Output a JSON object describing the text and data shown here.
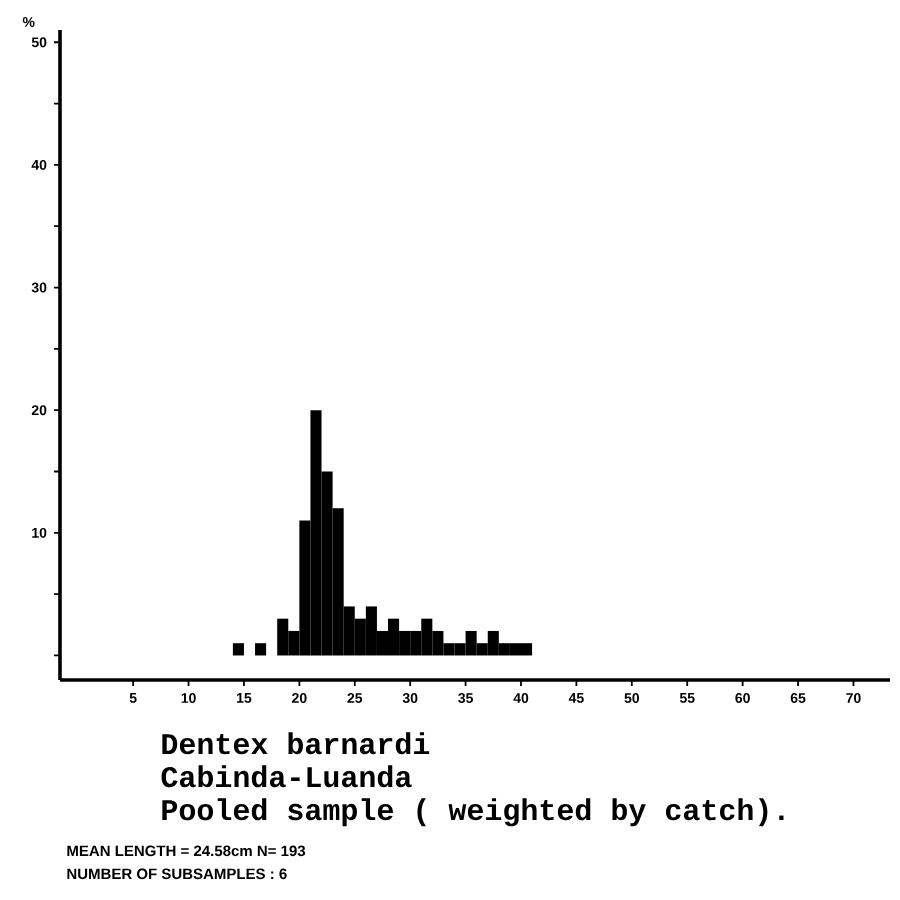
{
  "chart_data": {
    "type": "histogram",
    "title": "Dentex barnardi",
    "subtitle": "Cabinda-Luanda",
    "annotations": [
      "Pooled sample ( weighted by catch).",
      "MEAN LENGTH = 24.58cm N= 193",
      "NUMBER OF SUBSAMPLES : 6"
    ],
    "ylabel": "%",
    "color": "#000000",
    "bins": [
      14,
      15,
      16,
      17,
      18,
      19,
      20,
      21,
      22,
      23,
      24,
      25,
      26,
      27,
      28,
      29,
      30,
      31,
      32,
      33,
      34,
      35,
      36,
      37,
      38,
      39,
      40,
      41
    ],
    "values": [
      1,
      0,
      1,
      0,
      3,
      2,
      11,
      20,
      15,
      12,
      4,
      3,
      4,
      2,
      3,
      2,
      2,
      3,
      2,
      1,
      1,
      2,
      1,
      2,
      1,
      1,
      1
    ],
    "xlim": [
      -1.6,
      73.3
    ],
    "ylim": [
      -2,
      51
    ],
    "xticks": [
      5,
      10,
      15,
      20,
      25,
      30,
      35,
      40,
      45,
      50,
      55,
      60,
      65,
      70
    ],
    "yticks": [
      {
        "value": 0,
        "label": null
      },
      {
        "value": 5,
        "label": null
      },
      10,
      {
        "value": 15,
        "label": null
      },
      20,
      {
        "value": 25,
        "label": null
      },
      30,
      {
        "value": 35,
        "label": null
      },
      40,
      {
        "value": 45,
        "label": null
      },
      50
    ]
  }
}
